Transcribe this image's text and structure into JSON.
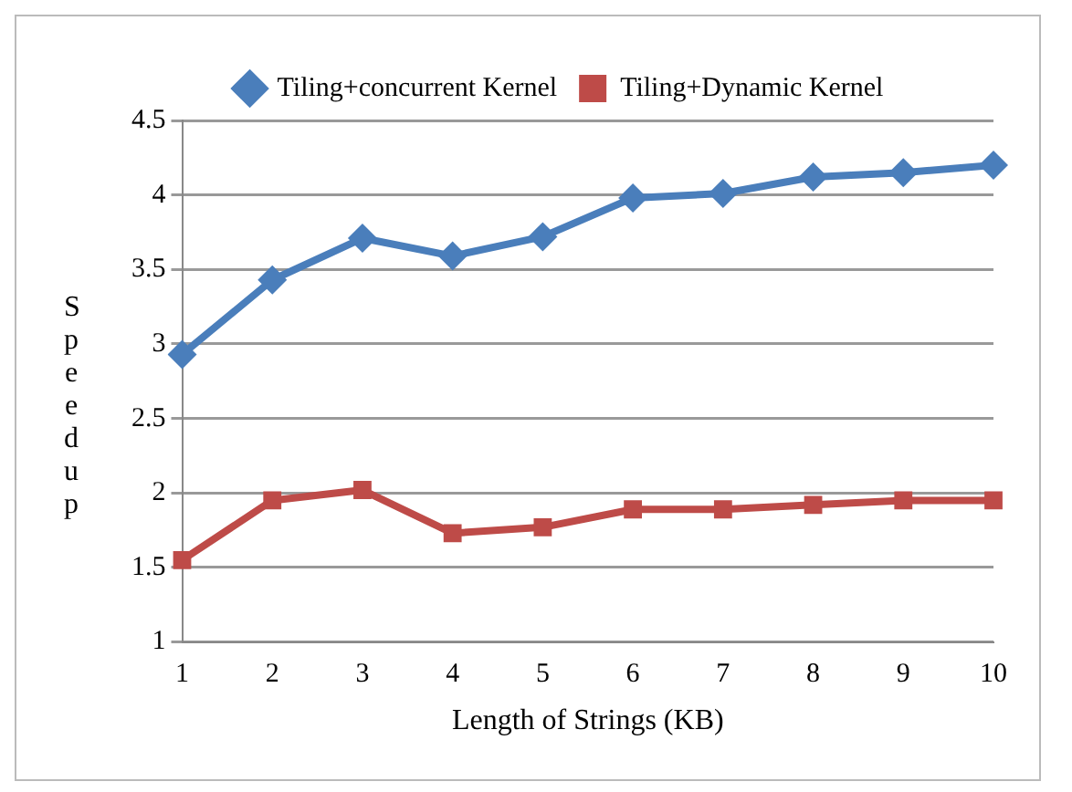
{
  "chart_data": {
    "type": "line",
    "xlabel": "Length of Strings (KB)",
    "ylabel": "Speedup",
    "categories": [
      "1",
      "2",
      "3",
      "4",
      "5",
      "6",
      "7",
      "8",
      "9",
      "10"
    ],
    "series": [
      {
        "name": "Tiling+concurrent Kernel",
        "color": "#4a7ebb",
        "marker": "diamond",
        "values": [
          2.93,
          3.43,
          3.71,
          3.59,
          3.72,
          3.98,
          4.01,
          4.12,
          4.15,
          4.2
        ]
      },
      {
        "name": "Tiling+Dynamic Kernel",
        "color": "#be4b48",
        "marker": "square",
        "values": [
          1.55,
          1.95,
          2.02,
          1.73,
          1.77,
          1.89,
          1.89,
          1.92,
          1.95,
          1.95
        ]
      }
    ],
    "ylim": [
      1,
      4.5
    ],
    "yticks": [
      1,
      1.5,
      2,
      2.5,
      3,
      3.5,
      4,
      4.5
    ],
    "grid": "y",
    "legend": "top",
    "line_style": "solid"
  }
}
